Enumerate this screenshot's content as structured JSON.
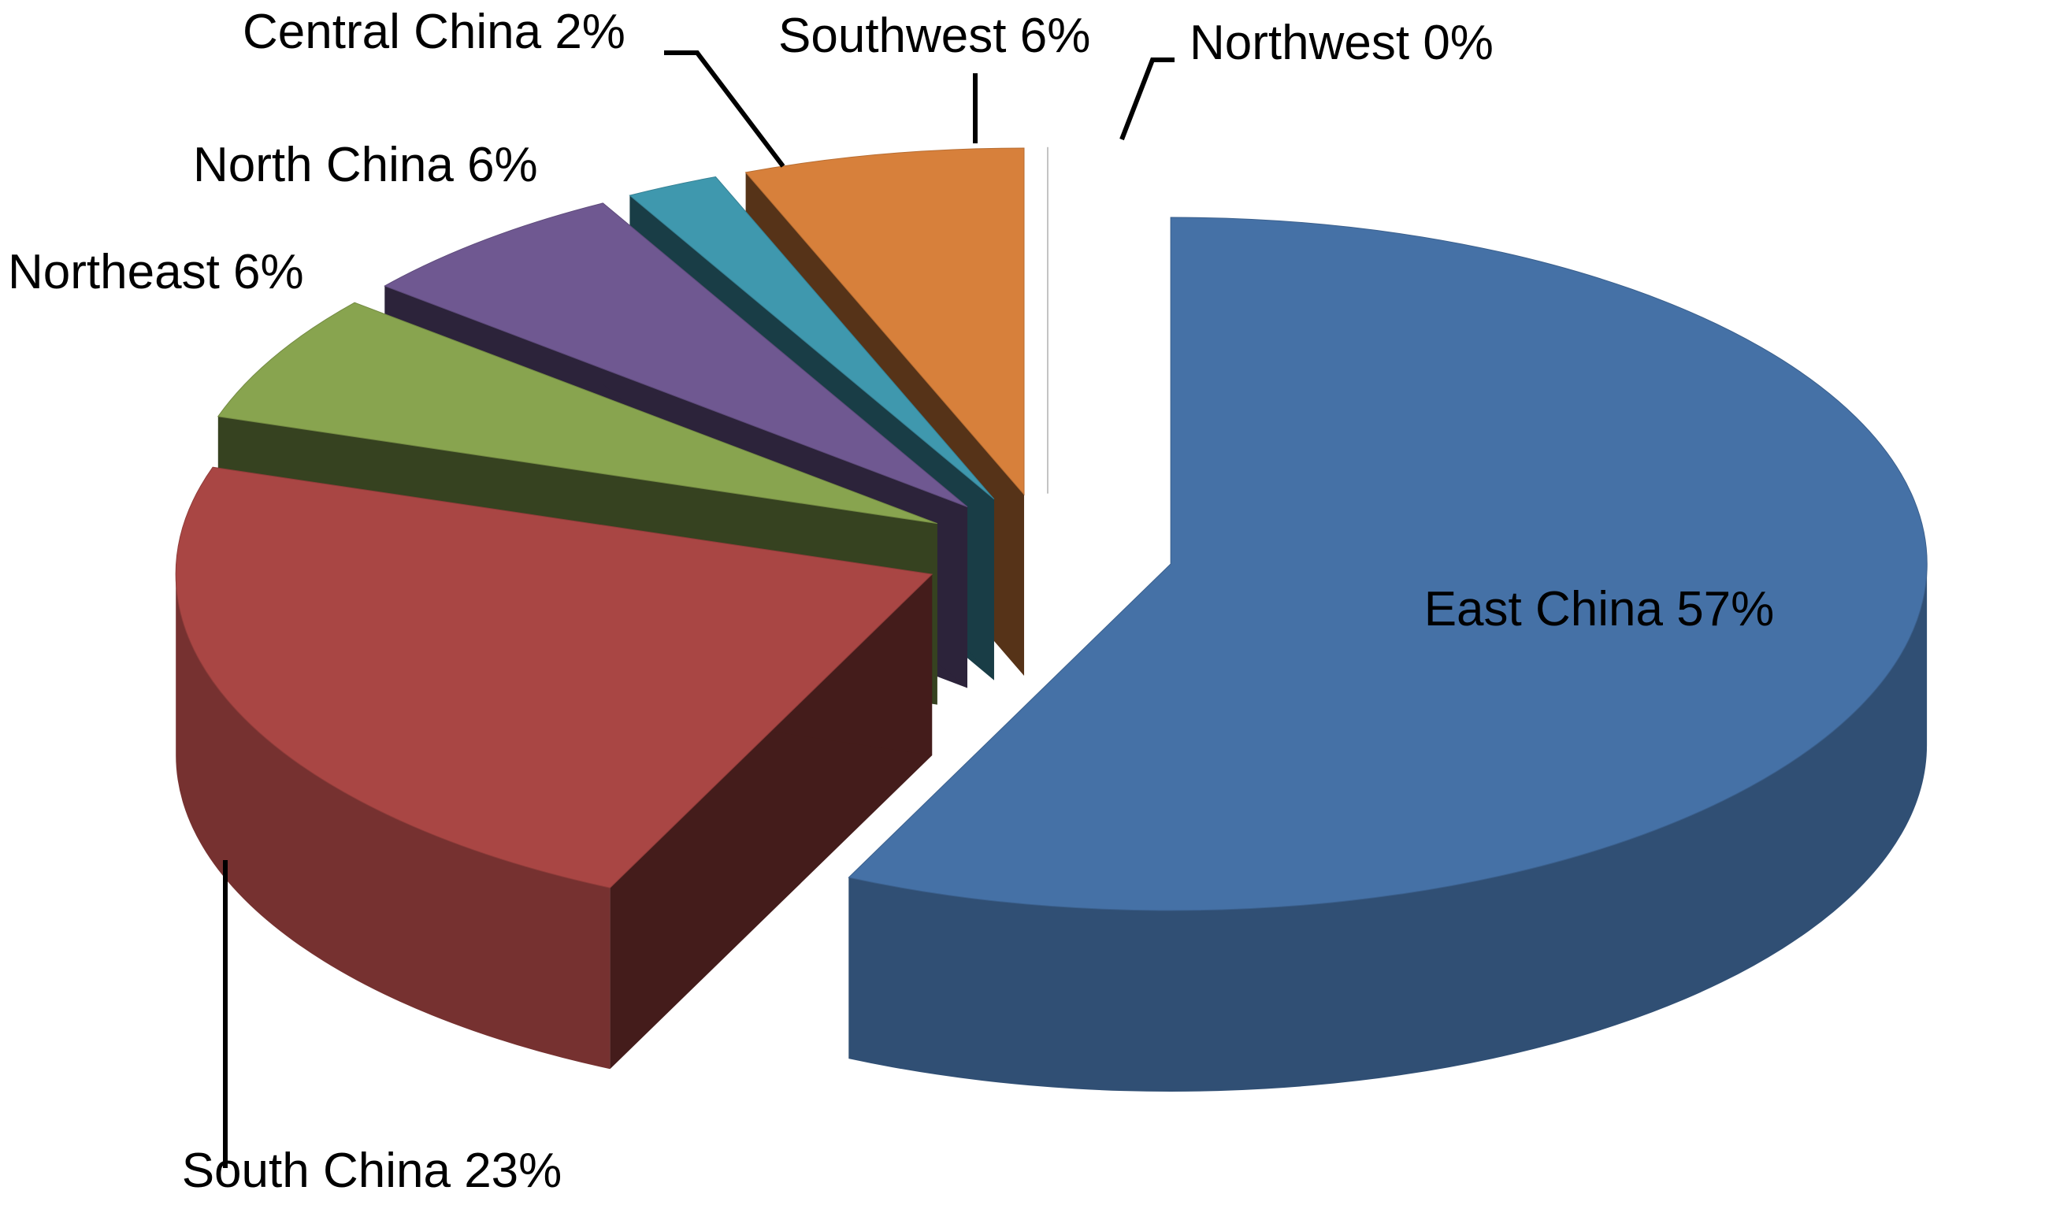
{
  "chart_data": {
    "type": "pie",
    "categories": [
      "East China",
      "South China",
      "Northeast",
      "North China",
      "Central China",
      "Southwest",
      "Northwest"
    ],
    "values": [
      57,
      23,
      6,
      6,
      2,
      6,
      0
    ],
    "value_labels": [
      "57%",
      "23%",
      "6%",
      "6%",
      "2%",
      "6%",
      "0%"
    ],
    "colors": [
      "#4571a6",
      "#a94644",
      "#88a44f",
      "#6f5891",
      "#3f98ae",
      "#d7803b",
      "#a0a0a0"
    ]
  }
}
